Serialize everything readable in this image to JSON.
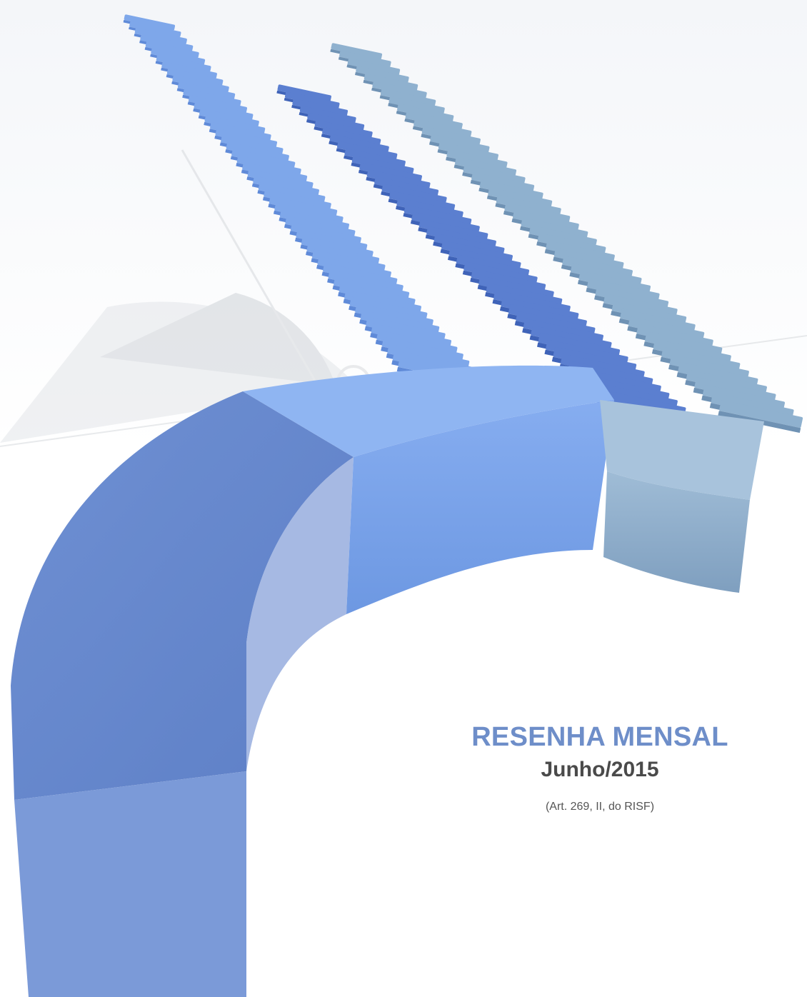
{
  "cover": {
    "title": "RESENHA MENSAL",
    "period": "Junho/2015",
    "reference": "(Art. 269, II, do RISF)"
  },
  "colors": {
    "title": "#6e8ec9",
    "subtitle": "#4a4a4a",
    "block_light": "#7ea7ea",
    "block_mid": "#5b7fd0",
    "block_steel": "#8fb1cf"
  }
}
